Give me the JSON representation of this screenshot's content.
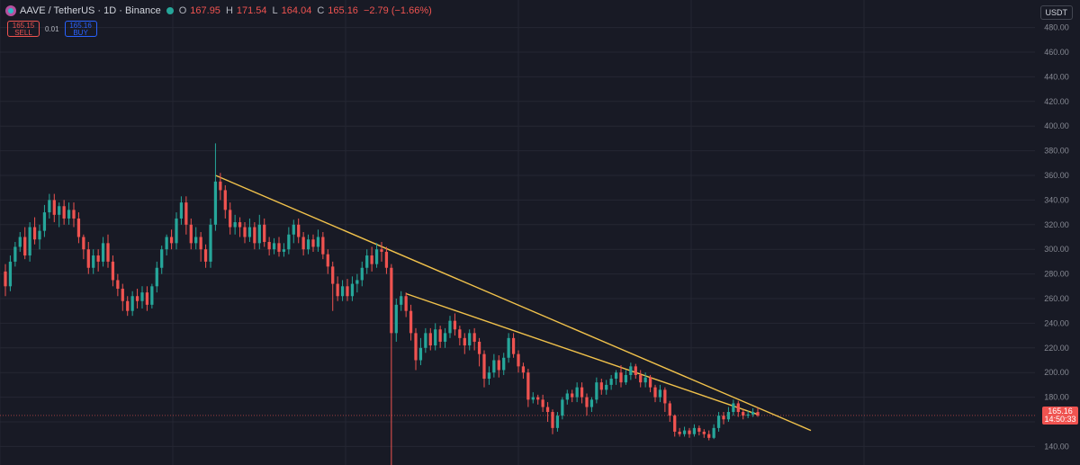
{
  "header": {
    "symbol": "AAVE / TetherUS · 1D · Binance",
    "symbol_icon": "aave-coin-icon",
    "status_icon": "market-open-dot-icon",
    "open_label": "O",
    "open": "167.95",
    "high_label": "H",
    "high": "171.54",
    "low_label": "L",
    "low": "164.04",
    "close_label": "C",
    "close": "165.16",
    "change": "−2.79 (−1.66%)"
  },
  "trade": {
    "sell_price": "165.15",
    "sell_label": "SELL",
    "buy_price": "165.16",
    "buy_label": "BUY",
    "spread": "0.01"
  },
  "currency": "USDT",
  "price_label": {
    "price": "165.16",
    "countdown": "14:50:33"
  },
  "colors": {
    "background": "#181a25",
    "up": "#26a69a",
    "down": "#ef5350",
    "trendline": "#f0c14b",
    "grid": "#252733"
  },
  "chart_data": {
    "type": "candlestick",
    "title": "AAVE / TetherUS · 1D · Binance",
    "y_ticks": [
      140,
      160,
      180,
      200,
      220,
      240,
      260,
      280,
      300,
      320,
      340,
      360,
      380,
      400,
      420,
      440,
      460,
      480
    ],
    "ylim": [
      130,
      490
    ],
    "last_price": 165.16,
    "grid": true,
    "candles": [
      [
        282,
        270,
        288,
        262
      ],
      [
        270,
        290,
        295,
        266
      ],
      [
        290,
        302,
        306,
        286
      ],
      [
        302,
        310,
        314,
        298
      ],
      [
        310,
        295,
        318,
        292
      ],
      [
        295,
        318,
        322,
        290
      ],
      [
        318,
        308,
        326,
        304
      ],
      [
        308,
        315,
        320,
        300
      ],
      [
        315,
        330,
        336,
        310
      ],
      [
        330,
        340,
        345,
        325
      ],
      [
        340,
        328,
        345,
        322
      ],
      [
        328,
        335,
        338,
        318
      ],
      [
        335,
        325,
        340,
        320
      ],
      [
        325,
        332,
        338,
        320
      ],
      [
        332,
        325,
        338,
        318
      ],
      [
        325,
        310,
        330,
        305
      ],
      [
        310,
        300,
        312,
        292
      ],
      [
        300,
        285,
        306,
        280
      ],
      [
        285,
        295,
        300,
        280
      ],
      [
        295,
        290,
        300,
        282
      ],
      [
        290,
        305,
        310,
        286
      ],
      [
        305,
        290,
        312,
        285
      ],
      [
        290,
        275,
        295,
        270
      ],
      [
        275,
        268,
        280,
        262
      ],
      [
        268,
        258,
        272,
        250
      ],
      [
        258,
        250,
        262,
        246
      ],
      [
        250,
        262,
        266,
        246
      ],
      [
        262,
        258,
        268,
        252
      ],
      [
        258,
        265,
        270,
        252
      ],
      [
        265,
        255,
        270,
        250
      ],
      [
        255,
        270,
        272,
        252
      ],
      [
        270,
        285,
        290,
        265
      ],
      [
        285,
        300,
        303,
        280
      ],
      [
        300,
        310,
        312,
        295
      ],
      [
        310,
        305,
        316,
        300
      ],
      [
        305,
        325,
        330,
        300
      ],
      [
        325,
        338,
        343,
        320
      ],
      [
        338,
        320,
        343,
        312
      ],
      [
        320,
        305,
        325,
        300
      ],
      [
        305,
        310,
        318,
        300
      ],
      [
        310,
        300,
        314,
        290
      ],
      [
        300,
        290,
        304,
        285
      ],
      [
        290,
        320,
        325,
        285
      ],
      [
        320,
        355,
        386,
        315
      ],
      [
        355,
        348,
        362,
        340
      ],
      [
        348,
        332,
        352,
        325
      ],
      [
        332,
        318,
        338,
        312
      ],
      [
        318,
        322,
        328,
        312
      ],
      [
        322,
        318,
        326,
        310
      ],
      [
        318,
        310,
        322,
        305
      ],
      [
        310,
        318,
        325,
        306
      ],
      [
        318,
        305,
        322,
        300
      ],
      [
        305,
        320,
        328,
        300
      ],
      [
        320,
        306,
        325,
        302
      ],
      [
        306,
        300,
        310,
        295
      ],
      [
        300,
        305,
        309,
        296
      ],
      [
        305,
        298,
        310,
        294
      ],
      [
        298,
        300,
        305,
        294
      ],
      [
        300,
        312,
        318,
        296
      ],
      [
        312,
        320,
        324,
        305
      ],
      [
        320,
        310,
        325,
        305
      ],
      [
        310,
        300,
        314,
        295
      ],
      [
        300,
        308,
        312,
        296
      ],
      [
        308,
        302,
        312,
        298
      ],
      [
        302,
        310,
        316,
        298
      ],
      [
        310,
        296,
        314,
        292
      ],
      [
        296,
        286,
        300,
        280
      ],
      [
        286,
        272,
        290,
        250
      ],
      [
        272,
        262,
        278,
        258
      ],
      [
        262,
        270,
        275,
        258
      ],
      [
        270,
        262,
        276,
        258
      ],
      [
        262,
        272,
        278,
        258
      ],
      [
        272,
        275,
        280,
        265
      ],
      [
        275,
        285,
        290,
        270
      ],
      [
        285,
        295,
        300,
        280
      ],
      [
        295,
        288,
        302,
        282
      ],
      [
        288,
        300,
        305,
        285
      ],
      [
        300,
        298,
        306,
        290
      ],
      [
        298,
        285,
        302,
        280
      ],
      [
        285,
        232,
        288,
        112
      ],
      [
        232,
        255,
        260,
        225
      ],
      [
        255,
        262,
        266,
        250
      ],
      [
        262,
        250,
        265,
        245
      ],
      [
        250,
        232,
        255,
        226
      ],
      [
        232,
        210,
        236,
        202
      ],
      [
        210,
        220,
        228,
        206
      ],
      [
        220,
        232,
        236,
        216
      ],
      [
        232,
        222,
        236,
        218
      ],
      [
        222,
        235,
        240,
        218
      ],
      [
        235,
        225,
        238,
        220
      ],
      [
        225,
        232,
        236,
        220
      ],
      [
        232,
        242,
        246,
        228
      ],
      [
        242,
        235,
        248,
        230
      ],
      [
        235,
        228,
        238,
        222
      ],
      [
        228,
        222,
        232,
        215
      ],
      [
        222,
        232,
        235,
        218
      ],
      [
        232,
        225,
        236,
        218
      ],
      [
        225,
        215,
        228,
        205
      ],
      [
        215,
        195,
        218,
        188
      ],
      [
        195,
        200,
        205,
        190
      ],
      [
        200,
        210,
        215,
        196
      ],
      [
        210,
        202,
        214,
        196
      ],
      [
        202,
        212,
        216,
        198
      ],
      [
        212,
        228,
        232,
        208
      ],
      [
        228,
        215,
        232,
        212
      ],
      [
        215,
        205,
        218,
        200
      ],
      [
        205,
        200,
        208,
        195
      ],
      [
        200,
        178,
        203,
        172
      ],
      [
        178,
        180,
        184,
        175
      ],
      [
        180,
        178,
        182,
        174
      ],
      [
        178,
        172,
        182,
        168
      ],
      [
        172,
        168,
        176,
        160
      ],
      [
        168,
        155,
        170,
        150
      ],
      [
        155,
        165,
        168,
        152
      ],
      [
        165,
        178,
        180,
        162
      ],
      [
        178,
        183,
        186,
        174
      ],
      [
        183,
        180,
        186,
        176
      ],
      [
        180,
        188,
        192,
        176
      ],
      [
        188,
        180,
        192,
        175
      ],
      [
        180,
        172,
        183,
        165
      ],
      [
        172,
        178,
        180,
        168
      ],
      [
        178,
        192,
        196,
        175
      ],
      [
        192,
        186,
        195,
        182
      ],
      [
        186,
        190,
        194,
        182
      ],
      [
        190,
        195,
        198,
        186
      ],
      [
        195,
        200,
        202,
        190
      ],
      [
        200,
        192,
        206,
        188
      ],
      [
        192,
        198,
        202,
        190
      ],
      [
        198,
        205,
        208,
        194
      ],
      [
        205,
        198,
        207,
        195
      ],
      [
        198,
        192,
        202,
        188
      ],
      [
        192,
        196,
        200,
        188
      ],
      [
        196,
        188,
        198,
        184
      ],
      [
        188,
        180,
        190,
        176
      ],
      [
        180,
        186,
        190,
        176
      ],
      [
        186,
        175,
        188,
        168
      ],
      [
        175,
        165,
        177,
        160
      ],
      [
        165,
        152,
        166,
        148
      ],
      [
        152,
        150,
        155,
        148
      ],
      [
        150,
        153,
        156,
        148
      ],
      [
        153,
        150,
        155,
        147
      ],
      [
        150,
        155,
        158,
        148
      ],
      [
        155,
        152,
        157,
        149
      ],
      [
        152,
        150,
        154,
        147
      ],
      [
        150,
        147,
        153,
        145
      ],
      [
        147,
        155,
        158,
        146
      ],
      [
        155,
        165,
        168,
        152
      ],
      [
        165,
        162,
        168,
        158
      ],
      [
        162,
        168,
        172,
        160
      ],
      [
        168,
        175,
        178,
        165
      ],
      [
        175,
        168,
        177,
        164
      ],
      [
        168,
        165,
        170,
        162
      ],
      [
        165,
        166,
        169,
        163
      ],
      [
        166,
        168,
        171,
        164
      ],
      [
        167.95,
        165.16,
        171.54,
        164.04
      ]
    ],
    "trendlines": [
      {
        "from": [
          358,
          360
        ],
        "to": [
          150,
          153
        ]
      },
      {
        "from": [
          262,
          264
        ],
        "to": [
          150,
          163
        ]
      }
    ]
  }
}
